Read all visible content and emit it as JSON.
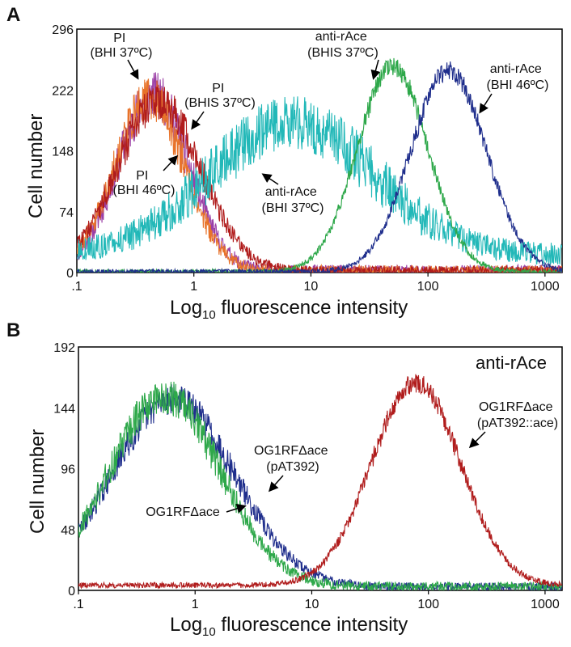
{
  "chart_data": [
    {
      "panel": "A",
      "type": "line",
      "xscale": "log",
      "xlim": [
        0.1,
        1400
      ],
      "ylim": [
        0,
        296
      ],
      "xlabel_main": "Log",
      "xlabel_sub": "10",
      "xlabel_rest": " fluorescence intensity",
      "ylabel": "Cell number",
      "xticks": [
        {
          "v": 0.1,
          "label": ".1"
        },
        {
          "v": 1,
          "label": "1"
        },
        {
          "v": 10,
          "label": "10"
        },
        {
          "v": 100,
          "label": "100"
        },
        {
          "v": 1000,
          "label": "1000"
        }
      ],
      "yticks": [
        0,
        74,
        148,
        222,
        296
      ],
      "series": [
        {
          "name": "PI (BHI 37ºC)",
          "color": "#9b3fa6",
          "center": 0.45,
          "sigma": 0.3,
          "peak": 215,
          "noise": 28,
          "base": 2
        },
        {
          "name": "PI (BHI 46ºC)",
          "color": "#e8732a",
          "center": 0.42,
          "sigma": 0.3,
          "peak": 210,
          "noise": 26,
          "base": 2
        },
        {
          "name": "PI (BHIS 37ºC)",
          "color": "#b01c1c",
          "center": 0.5,
          "sigma": 0.36,
          "peak": 205,
          "noise": 22,
          "base": 2
        },
        {
          "name": "anti-rAce (BHI 37ºC)",
          "color": "#22b8b8",
          "center": 7.0,
          "sigma": 0.7,
          "peak": 160,
          "noise": 34,
          "base": 22
        },
        {
          "name": "anti-rAce (BHIS 37ºC)",
          "color": "#2ea84a",
          "center": 50,
          "sigma": 0.3,
          "peak": 250,
          "noise": 12,
          "base": 1
        },
        {
          "name": "anti-rAce (BHI 46ºC)",
          "color": "#1f2e8c",
          "center": 150,
          "sigma": 0.32,
          "peak": 245,
          "noise": 12,
          "base": 1
        }
      ],
      "annotations": [
        {
          "lines": [
            "PI",
            "(BHI 37ºC)"
          ]
        },
        {
          "lines": [
            "PI",
            "(BHIS 37ºC)"
          ]
        },
        {
          "lines": [
            "PI",
            "(BHI 46ºC)"
          ]
        },
        {
          "lines": [
            "anti-rAce",
            "(BHI 37ºC)"
          ]
        },
        {
          "lines": [
            "anti-rAce",
            "(BHIS 37ºC)"
          ]
        },
        {
          "lines": [
            "anti-rAce",
            "(BHI 46ºC)"
          ]
        }
      ]
    },
    {
      "panel": "B",
      "type": "line",
      "xscale": "log",
      "xlim": [
        0.1,
        1400
      ],
      "ylim": [
        0,
        192
      ],
      "title": "anti-rAce",
      "xlabel_main": "Log",
      "xlabel_sub": "10",
      "xlabel_rest": " fluorescence intensity",
      "ylabel": "Cell number",
      "xticks": [
        {
          "v": 0.1,
          "label": ".1"
        },
        {
          "v": 1,
          "label": "1"
        },
        {
          "v": 10,
          "label": "10"
        },
        {
          "v": 100,
          "label": "100"
        },
        {
          "v": 1000,
          "label": "1000"
        }
      ],
      "yticks": [
        0,
        48,
        96,
        144,
        192
      ],
      "series": [
        {
          "name": "OG1RFΔace (pAT392)",
          "color": "#1f2e8c",
          "center": 0.65,
          "sigma": 0.52,
          "peak": 148,
          "noise": 12,
          "base": 3
        },
        {
          "name": "OG1RFΔace",
          "color": "#2ea84a",
          "center": 0.55,
          "sigma": 0.48,
          "peak": 150,
          "noise": 14,
          "base": 3
        },
        {
          "name": "OG1RFΔace (pAT392::ace)",
          "color": "#b01c1c",
          "center": 78,
          "sigma": 0.38,
          "peak": 160,
          "noise": 8,
          "base": 4
        }
      ],
      "annotations": [
        {
          "lines": [
            "OG1RFΔace",
            "(pAT392)"
          ]
        },
        {
          "lines": [
            "OG1RFΔace"
          ]
        },
        {
          "lines": [
            "OG1RFΔace",
            "(pAT392::ace)"
          ]
        }
      ]
    }
  ]
}
